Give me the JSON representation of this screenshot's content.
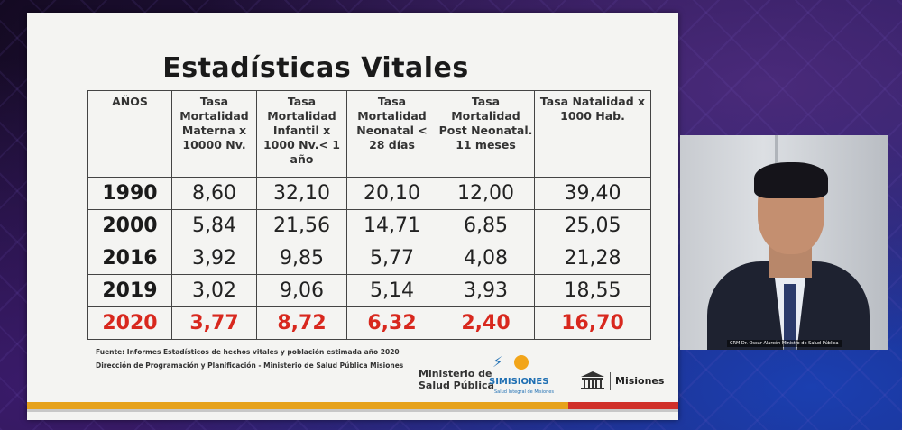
{
  "slide": {
    "title": "Estadísticas Vitales",
    "table": {
      "headers": [
        "AÑOS",
        "Tasa Mortalidad Materna x 10000 Nv.",
        "Tasa Mortalidad Infantil x 1000 Nv.< 1 año",
        "Tasa Mortalidad Neonatal < 28 días",
        "Tasa Mortalidad Post Neonatal. 11 meses",
        "Tasa Natalidad x 1000 Hab."
      ],
      "rows": [
        [
          "1990",
          "8,60",
          "32,10",
          "20,10",
          "12,00",
          "39,40"
        ],
        [
          "2000",
          "5,84",
          "21,56",
          "14,71",
          "6,85",
          "25,05"
        ],
        [
          "2016",
          "3,92",
          "9,85",
          "5,77",
          "4,08",
          "21,28"
        ],
        [
          "2019",
          "3,02",
          "9,06",
          "5,14",
          "3,93",
          "18,55"
        ],
        [
          "2020",
          "3,77",
          "8,72",
          "6,32",
          "2,40",
          "16,70"
        ]
      ],
      "highlight_color": "#d8281e"
    },
    "source_line_1": "Fuente: Informes Estadísticos de hechos vitales y población estimada año 2020",
    "source_line_2": "Dirección de Programación y Planificación - Ministerio de Salud Pública Misiones",
    "logos": {
      "ministerio_line_1": "Ministerio de",
      "ministerio_line_2": "Salud Pública",
      "si_misiones": "SIMISIONES",
      "si_tagline": "Salud Integral de Misiones",
      "gov_name": "Misiones"
    },
    "colors": {
      "gold": "#e6a21c",
      "red": "#d0302a"
    }
  },
  "camera": {
    "caption": "CRM Dr. Oscar Alarcón Ministro de Salud Pública"
  }
}
